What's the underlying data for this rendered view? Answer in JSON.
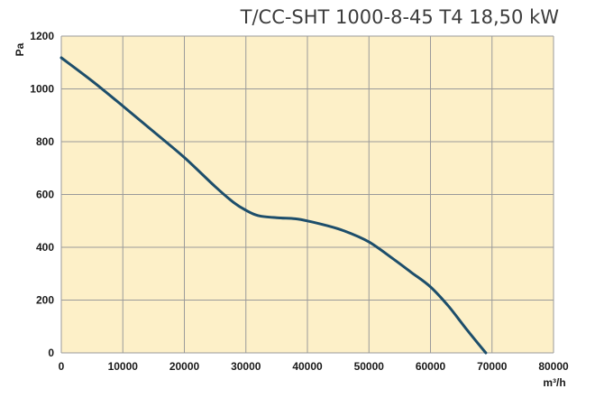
{
  "chart_data": {
    "type": "line",
    "title": "T/CC-SHT  1000-8-45 T4  18,50 kW",
    "xlabel": "m³/h",
    "ylabel": "Pa",
    "xlim": [
      0,
      80000
    ],
    "ylim": [
      0,
      1200
    ],
    "x_ticks": [
      "0",
      "10000",
      "20000",
      "30000",
      "40000",
      "50000",
      "60000",
      "70000",
      "80000"
    ],
    "y_ticks": [
      "0",
      "200",
      "400",
      "600",
      "800",
      "1000",
      "1200"
    ],
    "grid": true,
    "background_color": "#fdf0c8",
    "grid_color": "#9a9a9a",
    "line_color": "#1d4e6b",
    "series": [
      {
        "x": [
          0,
          5000,
          10000,
          15000,
          20000,
          25000,
          28000,
          30000,
          32000,
          35000,
          38000,
          40000,
          43000,
          46000,
          50000,
          54000,
          57000,
          60000,
          63000,
          66000,
          69000
        ],
        "y": [
          1118,
          1030,
          935,
          838,
          740,
          630,
          570,
          540,
          520,
          512,
          508,
          500,
          483,
          462,
          420,
          355,
          303,
          250,
          175,
          85,
          0
        ]
      }
    ]
  }
}
